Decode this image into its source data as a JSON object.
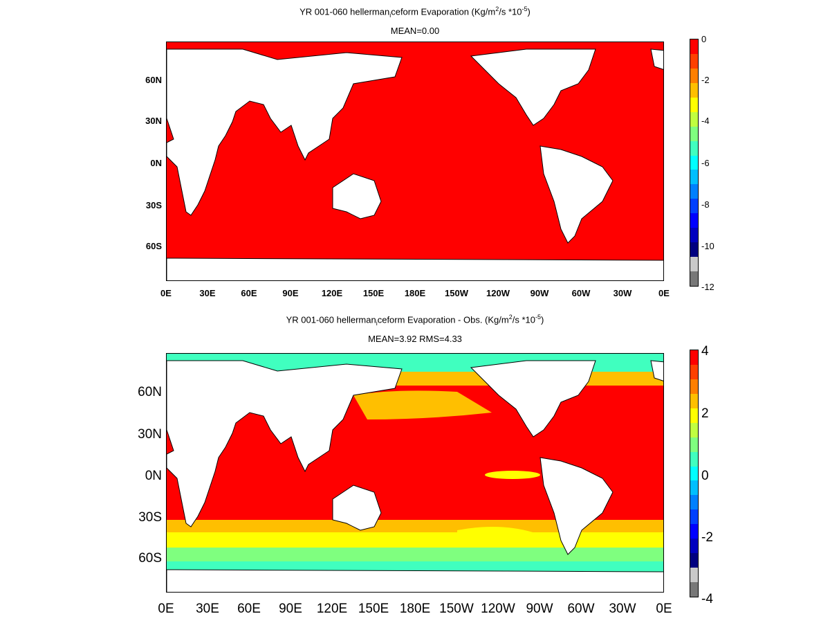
{
  "panels": [
    {
      "title_prefix": "YR 001-060 hellerman",
      "title_sub": "i",
      "title_mid": "ceform  Evaporation (Kg/m",
      "title_sup1": "2",
      "title_mid2": "/s *10",
      "title_sup2": "-5",
      "title_end": ")",
      "subtitle": "MEAN=0.00",
      "lat_labels": [
        "60N",
        "30N",
        "0N",
        "30S",
        "60S"
      ],
      "lon_labels": [
        "0E",
        "30E",
        "60E",
        "90E",
        "120E",
        "150E",
        "180E",
        "150W",
        "120W",
        "90W",
        "60W",
        "30W",
        "0E"
      ],
      "colorbar_labels": [
        "0",
        "-2",
        "-4",
        "-6",
        "-8",
        "-10",
        "-12"
      ],
      "colorbar_colors": [
        "#ff0000",
        "#ff4000",
        "#ff7f00",
        "#ffbf00",
        "#ffff00",
        "#c0ff40",
        "#7fff7f",
        "#40ffbf",
        "#00ffff",
        "#00bfff",
        "#0080ff",
        "#0040ff",
        "#0000ff",
        "#0000bf",
        "#000080",
        "#c8c8c8",
        "#787878"
      ],
      "ocean_color": "#ff0000"
    },
    {
      "title_prefix": "YR 001-060 hellerman",
      "title_sub": "i",
      "title_mid": "ceform Evaporation - Obs. (Kg/m",
      "title_sup1": "2",
      "title_mid2": "/s *10",
      "title_sup2": "-5",
      "title_end": ")",
      "subtitle": "MEAN=3.92   RMS=4.33",
      "lat_labels": [
        "60N",
        "30N",
        "0N",
        "30S",
        "60S"
      ],
      "lon_labels": [
        "0E",
        "30E",
        "60E",
        "90E",
        "120E",
        "150E",
        "180E",
        "150W",
        "120W",
        "90W",
        "60W",
        "30W",
        "0E"
      ],
      "colorbar_labels": [
        "4",
        "2",
        "0",
        "-2",
        "-4"
      ],
      "colorbar_colors": [
        "#ff0000",
        "#ff4000",
        "#ff7f00",
        "#ffbf00",
        "#ffff00",
        "#c0ff40",
        "#7fff7f",
        "#40ffbf",
        "#00ffff",
        "#00bfff",
        "#0080ff",
        "#0040ff",
        "#0000ff",
        "#0000bf",
        "#000080",
        "#c8c8c8",
        "#787878"
      ],
      "ocean_color": "#ff0000",
      "band_colors": {
        "high_lat": "#40ffbf",
        "mid_lat": "#ffff00",
        "transition": "#ffbf00"
      }
    }
  ]
}
